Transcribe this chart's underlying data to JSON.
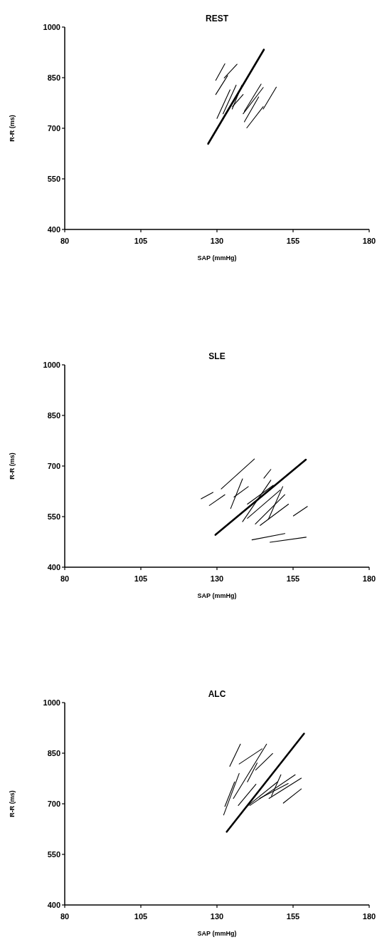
{
  "chart_data": [
    {
      "type": "line",
      "title": "REST",
      "xlabel": "SAP (mmHg)",
      "ylabel": "R-R (ms)",
      "xlim": [
        80,
        180
      ],
      "ylim": [
        400,
        1000
      ],
      "xticks": [
        80,
        105,
        130,
        155,
        180
      ],
      "yticks": [
        400,
        550,
        700,
        850,
        1000
      ],
      "series": [
        {
          "color": "#000000",
          "x": [
            127.1,
            145.4
          ],
          "values": [
            654,
            933
          ]
        },
        {
          "color": "#000000",
          "x": [
            129.6,
            132.6
          ],
          "values": [
            842,
            891
          ]
        },
        {
          "color": "#000000",
          "x": [
            132.4,
            136.6
          ],
          "values": [
            849,
            890
          ]
        },
        {
          "color": "#000000",
          "x": [
            129.6,
            133.5
          ],
          "values": [
            800,
            856
          ]
        },
        {
          "color": "#000000",
          "x": [
            130,
            134.3
          ],
          "values": [
            729,
            814
          ]
        },
        {
          "color": "#000000",
          "x": [
            132,
            136.3
          ],
          "values": [
            743,
            828
          ]
        },
        {
          "color": "#000000",
          "x": [
            135,
            138.2
          ],
          "values": [
            757,
            828
          ]
        },
        {
          "color": "#000000",
          "x": [
            135.1,
            138.6
          ],
          "values": [
            764,
            800
          ]
        },
        {
          "color": "#000000",
          "x": [
            139,
            144.5
          ],
          "values": [
            750,
            831
          ]
        },
        {
          "color": "#000000",
          "x": [
            138.6,
            145.2
          ],
          "values": [
            743,
            821
          ]
        },
        {
          "color": "#000000",
          "x": [
            139,
            143.7
          ],
          "values": [
            719,
            793
          ]
        },
        {
          "color": "#000000",
          "x": [
            139.8,
            145.2
          ],
          "values": [
            701,
            764
          ]
        },
        {
          "color": "#000000",
          "x": [
            145.2,
            149.5
          ],
          "values": [
            757,
            822
          ]
        }
      ]
    },
    {
      "type": "line",
      "title": "SLE",
      "xlabel": "SAP (mmHg)",
      "ylabel": "R-R (ms)",
      "xlim": [
        80,
        180
      ],
      "ylim": [
        400,
        1000
      ],
      "xticks": [
        80,
        105,
        130,
        155,
        180
      ],
      "yticks": [
        400,
        550,
        700,
        850,
        1000
      ],
      "series": [
        {
          "color": "#000000",
          "x": [
            129.5,
            159.2
          ],
          "values": [
            496,
            719
          ]
        },
        {
          "color": "#000000",
          "x": [
            124.8,
            128.7
          ],
          "values": [
            603,
            622
          ]
        },
        {
          "color": "#000000",
          "x": [
            127.5,
            132.6
          ],
          "values": [
            583,
            615
          ]
        },
        {
          "color": "#000000",
          "x": [
            131.4,
            142.3
          ],
          "values": [
            632,
            721
          ]
        },
        {
          "color": "#000000",
          "x": [
            134.5,
            138.4
          ],
          "values": [
            574,
            662
          ]
        },
        {
          "color": "#000000",
          "x": [
            135.6,
            140.3
          ],
          "values": [
            608,
            639
          ]
        },
        {
          "color": "#000000",
          "x": [
            145.4,
            147.7
          ],
          "values": [
            664,
            690
          ]
        },
        {
          "color": "#000000",
          "x": [
            138.4,
            147.7
          ],
          "values": [
            535,
            658
          ]
        },
        {
          "color": "#000000",
          "x": [
            140,
            150.8
          ],
          "values": [
            545,
            629
          ]
        },
        {
          "color": "#000000",
          "x": [
            142.6,
            152.3
          ],
          "values": [
            528,
            615
          ]
        },
        {
          "color": "#000000",
          "x": [
            144.2,
            153.5
          ],
          "values": [
            524,
            587
          ]
        },
        {
          "color": "#000000",
          "x": [
            146.9,
            151.6
          ],
          "values": [
            542,
            639
          ]
        },
        {
          "color": "#000000",
          "x": [
            140,
            148.5
          ],
          "values": [
            587,
            643
          ]
        },
        {
          "color": "#000000",
          "x": [
            155.1,
            159.7
          ],
          "values": [
            552,
            580
          ]
        },
        {
          "color": "#000000",
          "x": [
            141.5,
            152.3
          ],
          "values": [
            481,
            500
          ]
        },
        {
          "color": "#000000",
          "x": [
            147.4,
            159.3
          ],
          "values": [
            474,
            489
          ]
        }
      ]
    },
    {
      "type": "line",
      "title": "ALC",
      "xlabel": "SAP (mmHg)",
      "ylabel": "R-R (ms)",
      "xlim": [
        80,
        180
      ],
      "ylim": [
        400,
        1000
      ],
      "xticks": [
        80,
        105,
        130,
        155,
        180
      ],
      "yticks": [
        400,
        550,
        700,
        850,
        1000
      ],
      "series": [
        {
          "color": "#000000",
          "x": [
            133.2,
            158.6
          ],
          "values": [
            617,
            908
          ]
        },
        {
          "color": "#000000",
          "x": [
            134.2,
            137.7
          ],
          "values": [
            811,
            877
          ]
        },
        {
          "color": "#000000",
          "x": [
            132.2,
            137.3
          ],
          "values": [
            667,
            790
          ]
        },
        {
          "color": "#000000",
          "x": [
            132.6,
            135.8
          ],
          "values": [
            692,
            765
          ]
        },
        {
          "color": "#000000",
          "x": [
            135.4,
            146.3
          ],
          "values": [
            716,
            877
          ]
        },
        {
          "color": "#000000",
          "x": [
            137.3,
            144.8
          ],
          "values": [
            818,
            863
          ]
        },
        {
          "color": "#000000",
          "x": [
            137,
            142.8
          ],
          "values": [
            695,
            758
          ]
        },
        {
          "color": "#000000",
          "x": [
            140,
            143.2
          ],
          "values": [
            765,
            821
          ]
        },
        {
          "color": "#000000",
          "x": [
            142.7,
            148.3
          ],
          "values": [
            800,
            849
          ]
        },
        {
          "color": "#000000",
          "x": [
            139.3,
            149.9
          ],
          "values": [
            688,
            765
          ]
        },
        {
          "color": "#000000",
          "x": [
            140.8,
            155.7
          ],
          "values": [
            695,
            786
          ]
        },
        {
          "color": "#000000",
          "x": [
            147.1,
            157.7
          ],
          "values": [
            716,
            776
          ]
        },
        {
          "color": "#000000",
          "x": [
            151.8,
            157.7
          ],
          "values": [
            702,
            744
          ]
        },
        {
          "color": "#000000",
          "x": [
            144,
            153.4
          ],
          "values": [
            716,
            760
          ]
        },
        {
          "color": "#000000",
          "x": [
            147.9,
            151
          ],
          "values": [
            723,
            786
          ]
        }
      ]
    }
  ]
}
